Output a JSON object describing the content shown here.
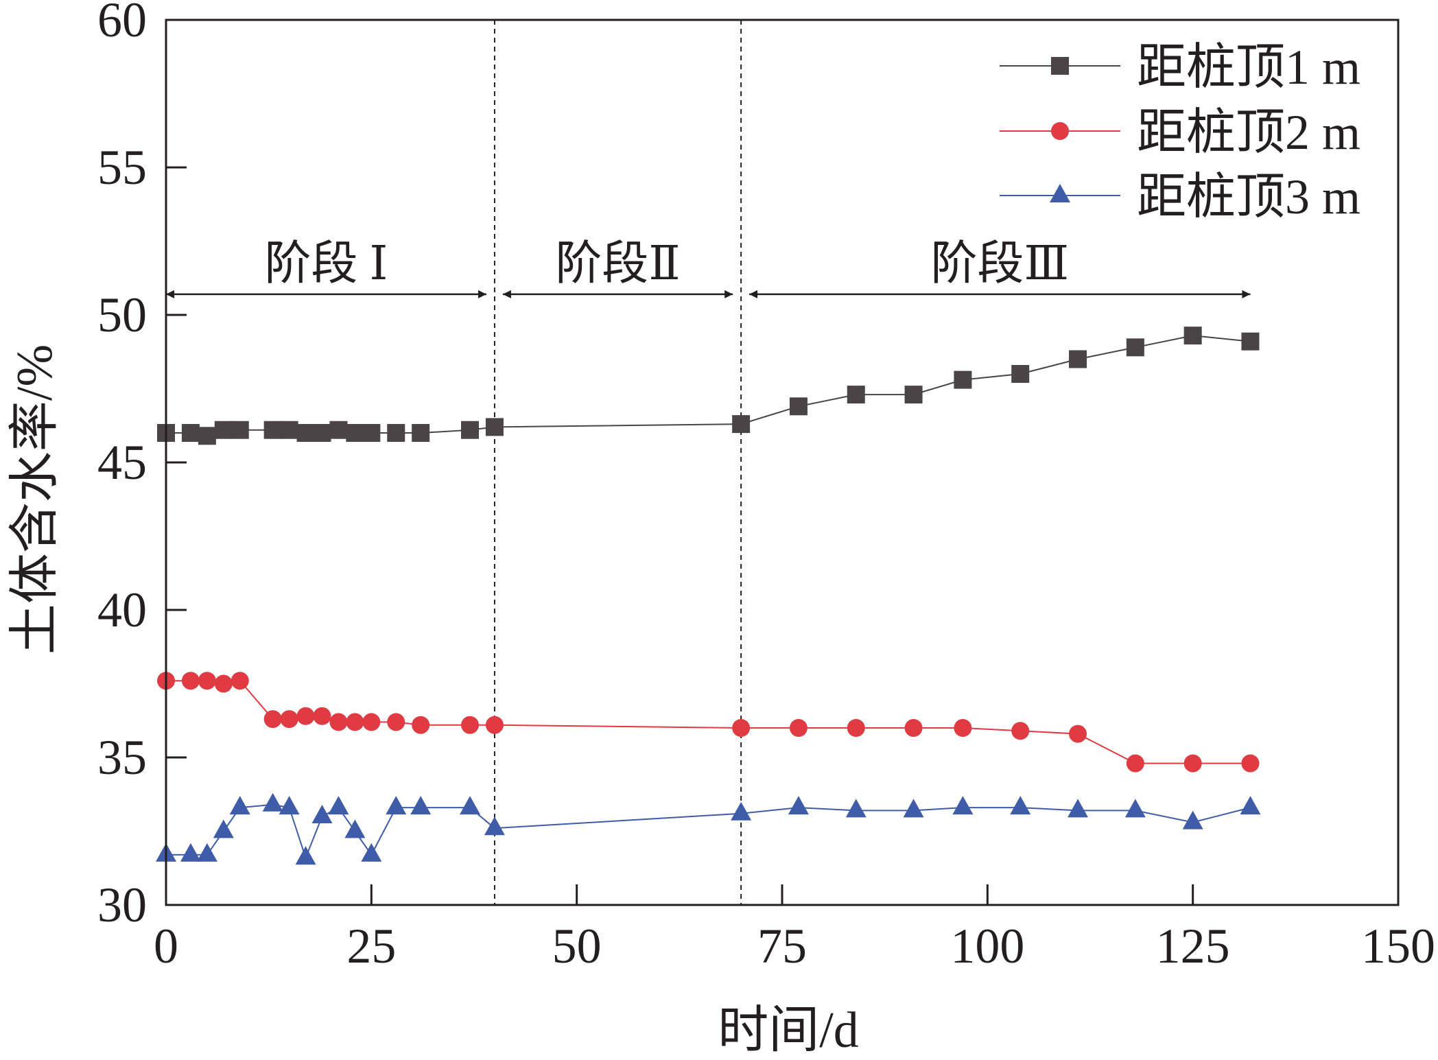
{
  "chart_data": {
    "type": "line",
    "title": "",
    "xlabel": "时间/d",
    "ylabel": "土体含水率/%",
    "xlim": [
      0,
      150
    ],
    "ylim": [
      30,
      60
    ],
    "xticks": [
      0,
      25,
      50,
      75,
      100,
      125,
      150
    ],
    "yticks": [
      30,
      35,
      40,
      45,
      50,
      55,
      60
    ],
    "grid": false,
    "legend": "top-right",
    "x": [
      0,
      3,
      5,
      7,
      9,
      13,
      15,
      17,
      19,
      21,
      23,
      25,
      28,
      31,
      37,
      40,
      70,
      77,
      84,
      91,
      97,
      104,
      111,
      118,
      125,
      132
    ],
    "series": [
      {
        "name": "距桩顶1 m",
        "marker": "square",
        "color": "#4a4446",
        "values": [
          46.0,
          46.0,
          45.9,
          46.1,
          46.1,
          46.1,
          46.1,
          46.0,
          46.0,
          46.1,
          46.0,
          46.0,
          46.0,
          46.0,
          46.1,
          46.2,
          46.3,
          46.9,
          47.3,
          47.3,
          47.8,
          48.0,
          48.5,
          48.9,
          49.3,
          49.1
        ]
      },
      {
        "name": "距桩顶2 m",
        "marker": "circle",
        "color": "#e03a42",
        "values": [
          37.6,
          37.6,
          37.6,
          37.5,
          37.6,
          36.3,
          36.3,
          36.4,
          36.4,
          36.2,
          36.2,
          36.2,
          36.2,
          36.1,
          36.1,
          36.1,
          36.0,
          36.0,
          36.0,
          36.0,
          36.0,
          35.9,
          35.8,
          34.8,
          34.8,
          34.8
        ]
      },
      {
        "name": "距桩顶3 m",
        "marker": "triangle",
        "color": "#3f5ca8",
        "values": [
          31.7,
          31.7,
          31.7,
          32.5,
          33.3,
          33.4,
          33.3,
          31.6,
          33.0,
          33.3,
          32.5,
          31.7,
          33.3,
          33.3,
          33.3,
          32.6,
          33.1,
          33.3,
          33.2,
          33.2,
          33.3,
          33.3,
          33.2,
          33.2,
          32.8,
          33.3
        ]
      }
    ],
    "stage_dividers": [
      40,
      70
    ],
    "stages": [
      {
        "label": "阶段 Ⅰ",
        "start": 0,
        "end": 40
      },
      {
        "label": "阶段Ⅱ",
        "start": 40,
        "end": 70
      },
      {
        "label": "阶段Ⅲ",
        "start": 70,
        "end": 132
      }
    ]
  }
}
